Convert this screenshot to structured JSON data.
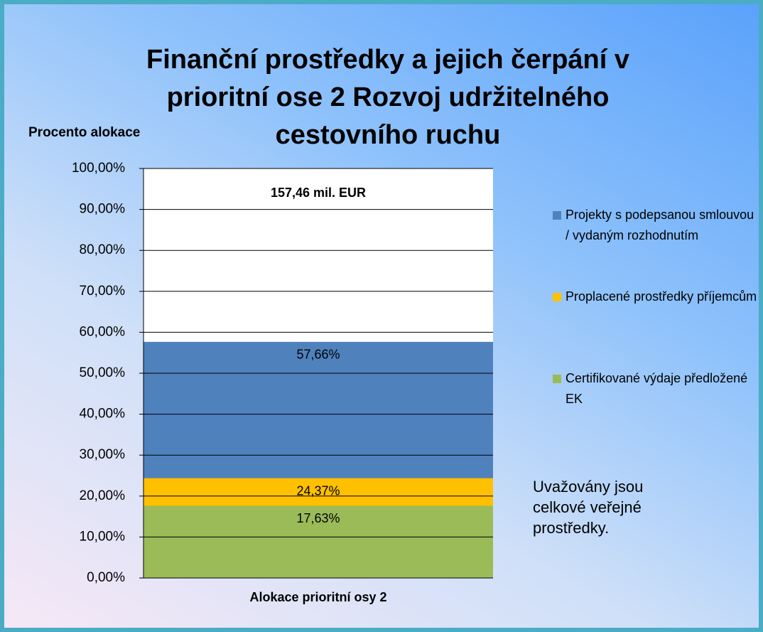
{
  "chart_data": {
    "type": "bar",
    "title": "Finanční prostředky a jejich čerpání v prioritní ose 2 Rozvoj udržitelného cestovního ruchu",
    "y_label": "Procento alokace",
    "categories": [
      "Alokace prioritní osy 2"
    ],
    "series": [
      {
        "name": "Projekty s podepsanou smlouvou / vydaným rozhodnutím",
        "color": "#4f81bd",
        "values": [
          57.66
        ],
        "value_labels": [
          "57,66%"
        ]
      },
      {
        "name": "Proplacené prostředky příjemcům",
        "color": "#ffc000",
        "values": [
          24.37
        ],
        "value_labels": [
          "24,37%"
        ]
      },
      {
        "name": "Certifikované výdaje předložené EK",
        "color": "#9bbb59",
        "values": [
          17.63
        ],
        "value_labels": [
          "17,63%"
        ]
      }
    ],
    "ylim": [
      0,
      100
    ],
    "yticks": [
      {
        "value": 0,
        "label": "0,00%"
      },
      {
        "value": 10,
        "label": "10,00%"
      },
      {
        "value": 20,
        "label": "20,00%"
      },
      {
        "value": 30,
        "label": "30,00%"
      },
      {
        "value": 40,
        "label": "40,00%"
      },
      {
        "value": 50,
        "label": "50,00%"
      },
      {
        "value": 60,
        "label": "60,00%"
      },
      {
        "value": 70,
        "label": "70,00%"
      },
      {
        "value": 80,
        "label": "80,00%"
      },
      {
        "value": 90,
        "label": "90,00%"
      },
      {
        "value": 100,
        "label": "100,00%"
      }
    ],
    "grid": true,
    "annotations": [
      "157,46 mil. EUR",
      "Uvažovány jsou celkové veřejné prostředky."
    ]
  }
}
